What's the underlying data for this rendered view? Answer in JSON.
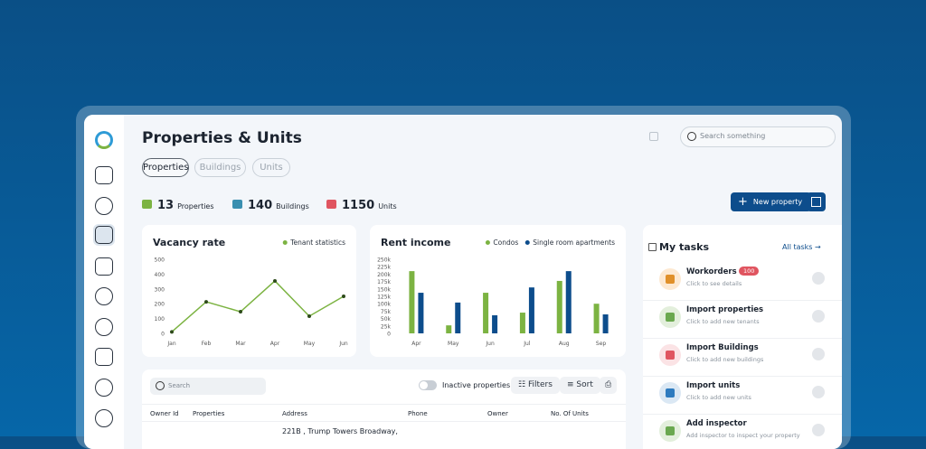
{
  "header": {
    "title": "Properties & Units",
    "tabs": [
      "Properties",
      "Buildings",
      "Units"
    ],
    "search": "Search something"
  },
  "stats": [
    {
      "value": 13,
      "label": "Properties"
    },
    {
      "value": 140,
      "label": "Buildings"
    },
    {
      "value": 1150,
      "label": "Units"
    }
  ],
  "new_property": "New property",
  "chart_data": [
    {
      "type": "line",
      "title": "Vacancy rate",
      "categories": [
        "Jan",
        "Feb",
        "Mar",
        "Apr",
        "May",
        "Jun"
      ],
      "series": [
        {
          "name": "Tenant statistics",
          "color": "#7cb342",
          "values": [
            10,
            213,
            146,
            354,
            116,
            250
          ]
        }
      ],
      "ylim": [
        0,
        500
      ],
      "yticks": [
        0,
        100,
        200,
        300,
        400,
        500
      ]
    },
    {
      "type": "bar",
      "title": "Rent income",
      "categories": [
        "Apr",
        "May",
        "Jun",
        "Jul",
        "Aug",
        "Sep"
      ],
      "series": [
        {
          "name": "Condos",
          "color": "#7cb342",
          "values": [
            210000,
            27000,
            137000,
            70000,
            177000,
            100000
          ]
        },
        {
          "name": "Single room apartments",
          "color": "#0d4d8c",
          "values": [
            137000,
            104000,
            61000,
            155000,
            210000,
            64000
          ]
        }
      ],
      "ylim": [
        0,
        250000
      ],
      "yticks": [
        0,
        {
          "value": 25000,
          "label": "25k"
        },
        {
          "value": 50000,
          "label": "50k"
        },
        {
          "value": 75000,
          "label": "75k"
        },
        {
          "value": 100000,
          "label": "100k"
        },
        {
          "value": 125000,
          "label": "125k"
        },
        {
          "value": 150000,
          "label": "150k"
        },
        {
          "value": 175000,
          "label": "175k"
        },
        {
          "value": 200000,
          "label": "200k"
        },
        {
          "value": 225000,
          "label": "225k"
        },
        {
          "value": 250000,
          "label": "250k"
        }
      ]
    }
  ],
  "table": {
    "search": "Search",
    "toggle": "Inactive properties",
    "filters": "Filters",
    "sort": "Sort",
    "columns": [
      "Owner Id",
      "Properties",
      "Address",
      "Phone",
      "Owner",
      "No. Of Units"
    ],
    "rows": [
      {
        "address": "221B , Trump Towers Broadway,"
      }
    ]
  },
  "tasks": {
    "title": "My tasks",
    "all": "All tasks",
    "items": [
      {
        "title": "Workorders",
        "badge": 100,
        "sub": "Click to see details"
      },
      {
        "title": "Import properties",
        "sub": "Click to add new tenants"
      },
      {
        "title": "Import Buildings",
        "sub": "Click to add new buildings"
      },
      {
        "title": "Import units",
        "sub": "Click to add new units"
      },
      {
        "title": "Add inspector",
        "sub": "Add inspector to inspect your property"
      }
    ]
  }
}
